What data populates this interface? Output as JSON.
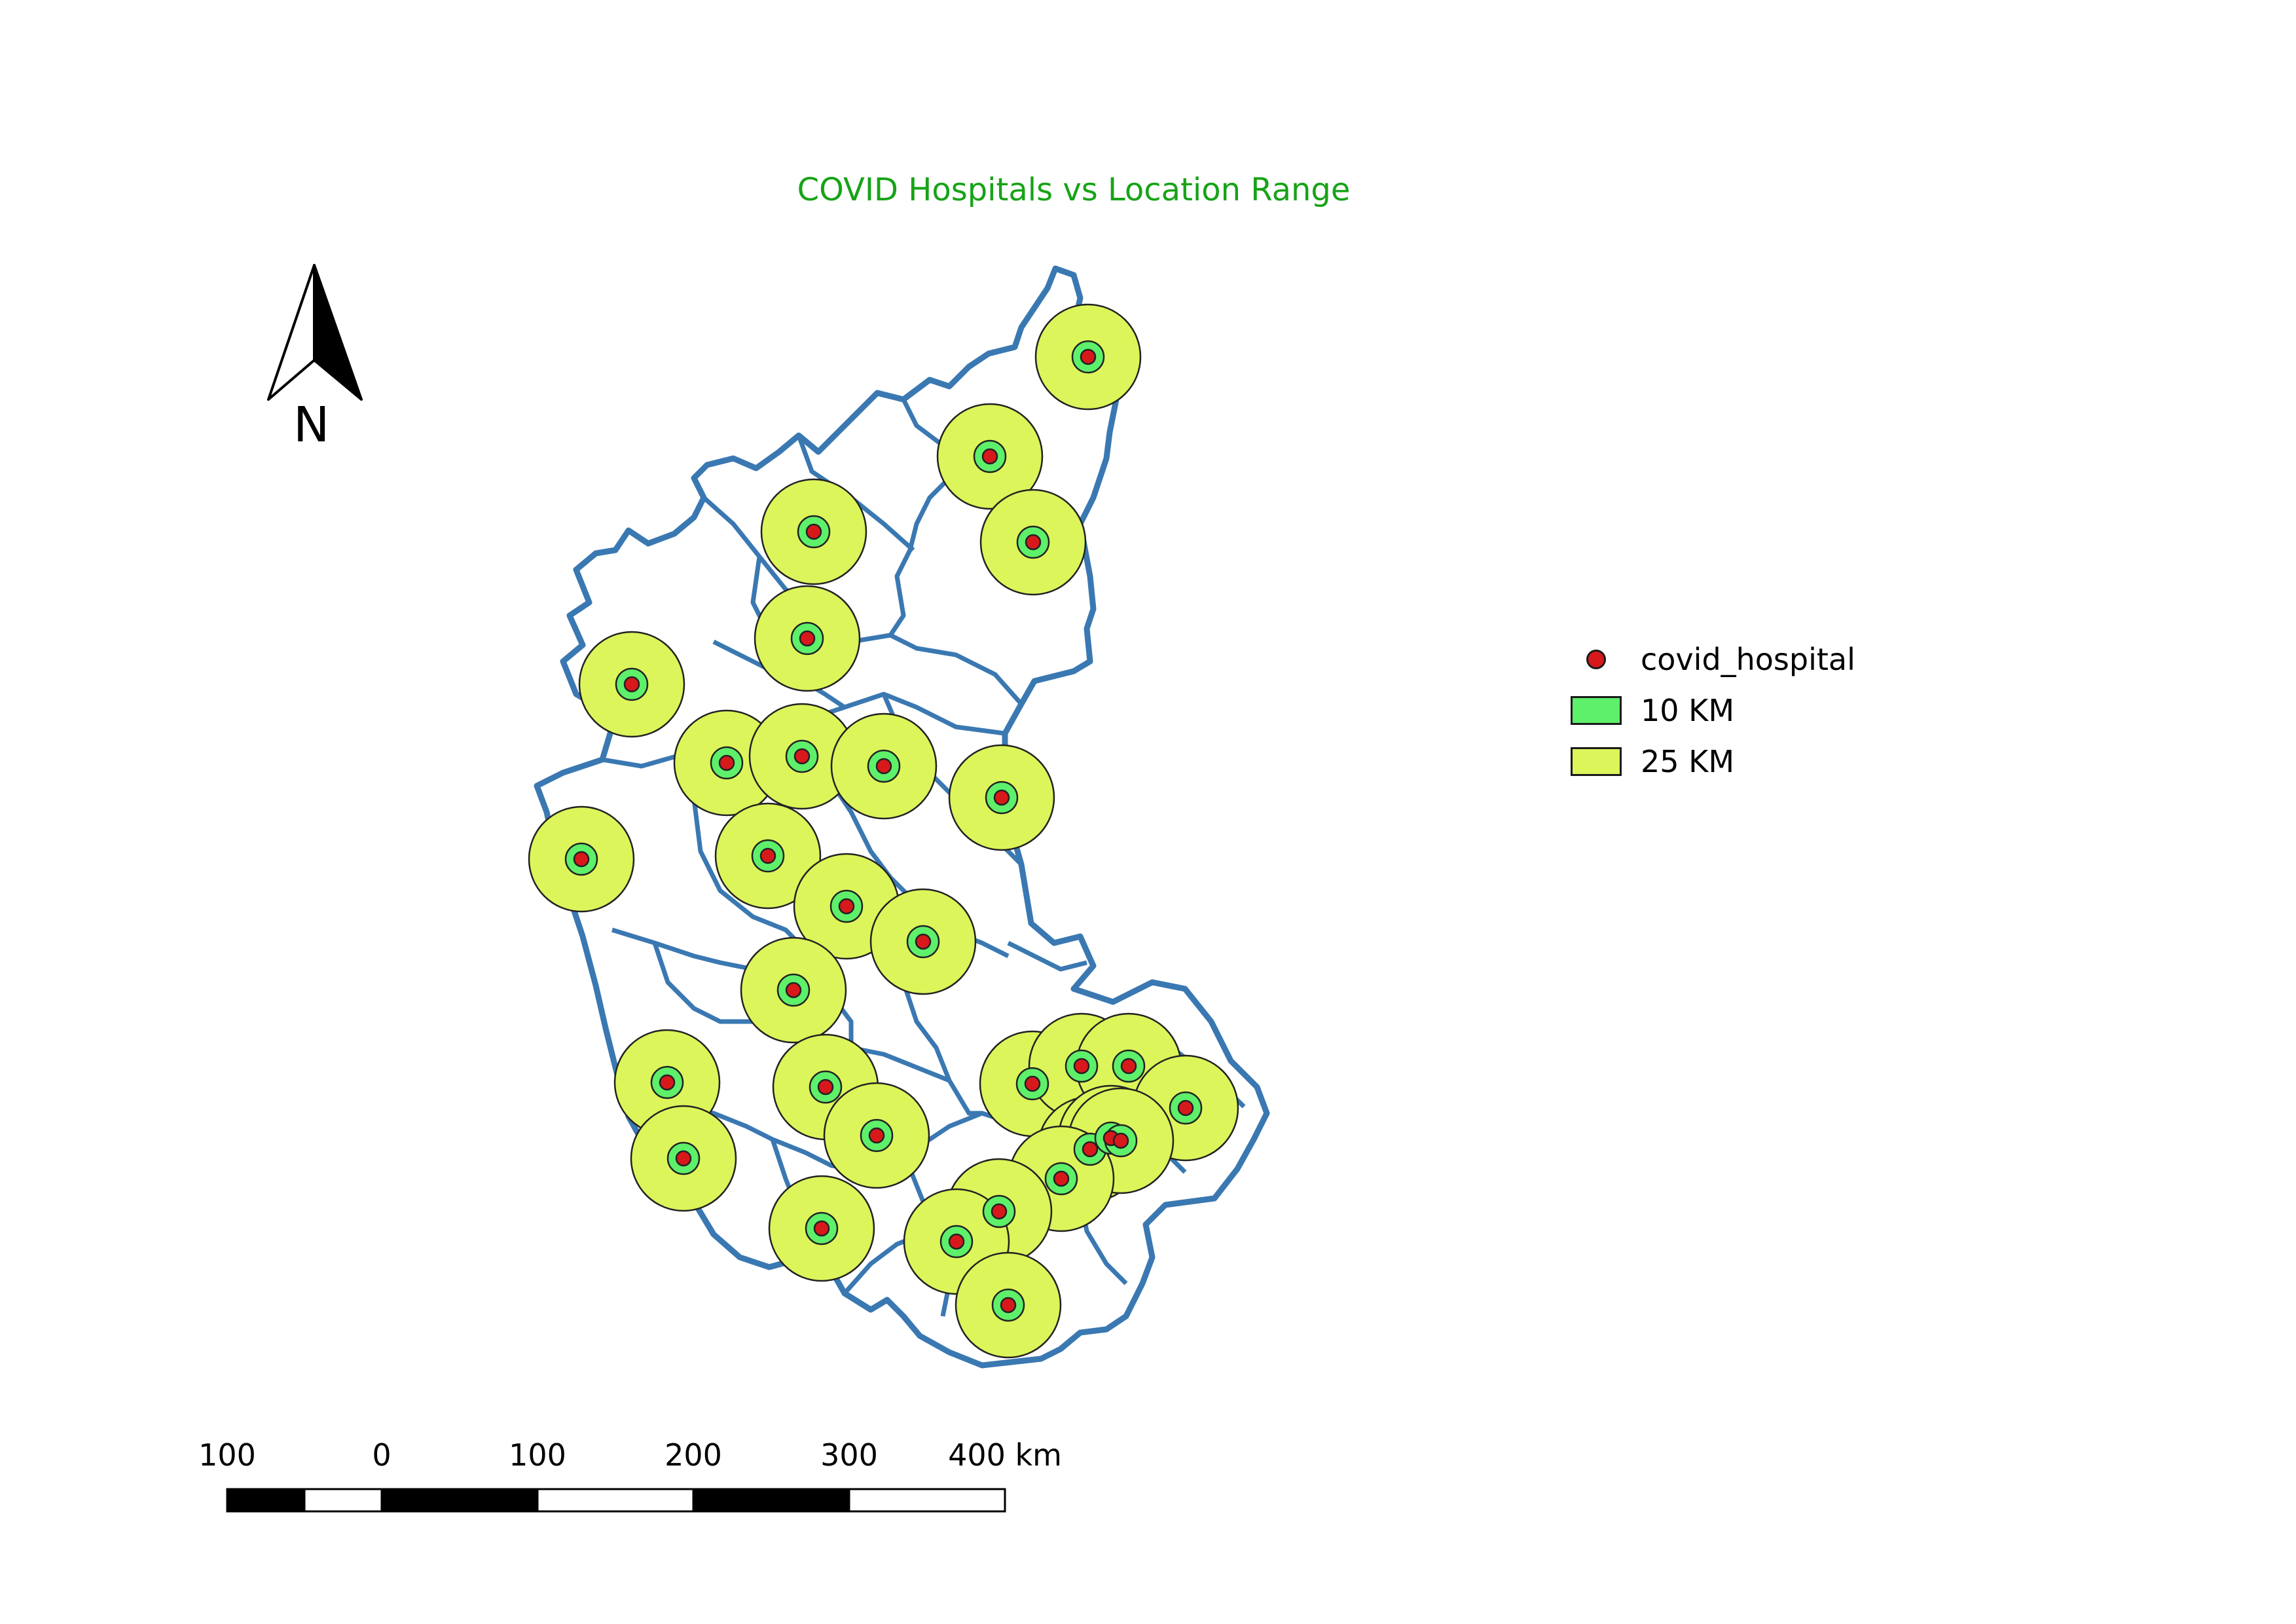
{
  "title": "COVID Hospitals vs Location Range",
  "north_arrow": {
    "label": "N"
  },
  "legend": {
    "items": [
      {
        "label": "covid_hospital",
        "symbol": "point",
        "color": "#d7191c"
      },
      {
        "label": "10 KM",
        "symbol": "fill",
        "color": "#5ef06a"
      },
      {
        "label": "25 KM",
        "symbol": "fill",
        "color": "#dcf55b"
      }
    ]
  },
  "scale_bar": {
    "labels": [
      "100",
      "0",
      "100",
      "200",
      "300",
      "400 km"
    ]
  },
  "colors": {
    "boundary": "#3a78b2",
    "buffer_25km": "#dcf55b",
    "buffer_10km": "#5ef06a",
    "hospital": "#d7191c",
    "title": "#17a317"
  }
}
